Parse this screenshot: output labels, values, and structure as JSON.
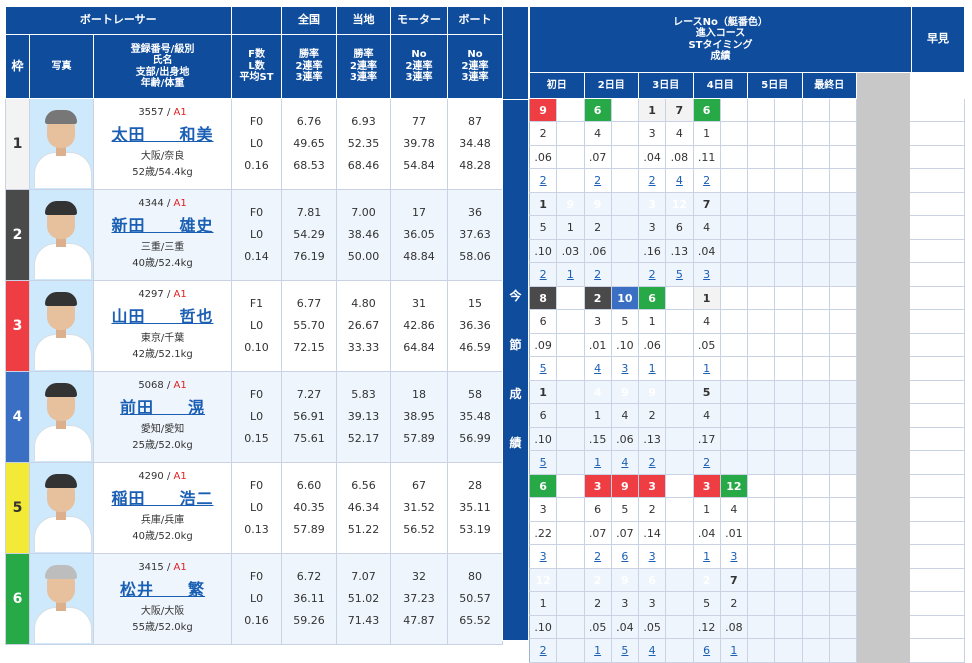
{
  "headers": {
    "boat_racer": "ボートレーサー",
    "waku": "枠",
    "photo": "写真",
    "racer_info": [
      "登録番号/級別",
      "氏名",
      "支部/出身地",
      "年齢/体重"
    ],
    "fl": [
      "F数",
      "L数",
      "平均ST"
    ],
    "zenkoku": "全国",
    "touchi": "当地",
    "motor": "モーター",
    "boat": "ボート",
    "rate3": [
      "勝率",
      "2連率",
      "3連率"
    ],
    "rateNo": [
      "No",
      "2連率",
      "3連率"
    ],
    "race_info": [
      "レースNo（艇番色）",
      "進入コース",
      "STタイミング",
      "成績"
    ],
    "days": [
      "初日",
      "2日目",
      "3日目",
      "4日目",
      "5日目",
      "最終日"
    ],
    "konsetsu": [
      "今",
      "節",
      "成",
      "績"
    ],
    "hayami": "早見"
  },
  "colors": {
    "header": "#0f4d9c",
    "waku1": "#f3f3f3",
    "waku2": "#4a4a4a",
    "waku3": "#ef3e43",
    "waku4": "#3b6fc4",
    "waku5": "#f2ea37",
    "waku6": "#27a947"
  },
  "racers": [
    {
      "waku": "1",
      "reg": "3557",
      "cls": "A1",
      "name": "太田　　和美",
      "branch": "大阪/奈良",
      "age": "52歳/54.4kg",
      "hair": "dgrey",
      "f": "F0",
      "l": "L0",
      "st": "0.16",
      "zen": [
        "6.76",
        "49.65",
        "68.53"
      ],
      "tou": [
        "6.93",
        "52.35",
        "68.46"
      ],
      "mot": [
        "77",
        "39.78",
        "54.84"
      ],
      "boa": [
        "87",
        "34.48",
        "48.28"
      ],
      "races": [
        [
          "9",
          "",
          "6",
          "",
          "1",
          "7",
          "6",
          "",
          "",
          "",
          ""
        ],
        [
          "2",
          "",
          "4",
          "",
          "3",
          "4",
          "1",
          "",
          "",
          "",
          ""
        ],
        [
          ".06",
          "",
          ".07",
          "",
          ".04",
          ".08",
          ".11",
          "",
          "",
          "",
          ""
        ],
        [
          "2",
          "",
          "2",
          "",
          "2",
          "4",
          "2",
          "",
          "",
          "",
          ""
        ]
      ],
      "colorsR": [
        "9",
        "",
        "6",
        "",
        "1",
        "7",
        "6",
        "",
        "",
        "",
        ""
      ]
    },
    {
      "waku": "2",
      "reg": "4344",
      "cls": "A1",
      "name": "新田　　雄史",
      "branch": "三重/三重",
      "age": "40歳/52.4kg",
      "hair": "",
      "f": "F0",
      "l": "L0",
      "st": "0.14",
      "zen": [
        "7.81",
        "54.29",
        "76.19"
      ],
      "tou": [
        "7.00",
        "38.46",
        "50.00"
      ],
      "mot": [
        "17",
        "36.05",
        "48.84"
      ],
      "boa": [
        "36",
        "37.63",
        "58.06"
      ],
      "races": [
        [
          "1",
          "9",
          "9",
          "",
          "3",
          "12",
          "7",
          "",
          "",
          "",
          ""
        ],
        [
          "5",
          "1",
          "2",
          "",
          "3",
          "6",
          "4",
          "",
          "",
          "",
          ""
        ],
        [
          ".10",
          ".03",
          ".06",
          "",
          ".16",
          ".13",
          ".04",
          "",
          "",
          "",
          ""
        ],
        [
          "2",
          "1",
          "2",
          "",
          "2",
          "5",
          "3",
          "",
          "",
          "",
          ""
        ]
      ],
      "colorsR": [
        "1",
        "9",
        "9",
        "",
        "3",
        "12",
        "7",
        "",
        "",
        "",
        ""
      ]
    },
    {
      "waku": "3",
      "reg": "4297",
      "cls": "A1",
      "name": "山田　　哲也",
      "branch": "東京/千葉",
      "age": "42歳/52.1kg",
      "hair": "",
      "f": "F1",
      "l": "L0",
      "st": "0.10",
      "zen": [
        "6.77",
        "55.70",
        "72.15"
      ],
      "tou": [
        "4.80",
        "26.67",
        "33.33"
      ],
      "mot": [
        "31",
        "42.86",
        "64.84"
      ],
      "boa": [
        "15",
        "36.36",
        "46.59"
      ],
      "races": [
        [
          "8",
          "",
          "2",
          "10",
          "6",
          "",
          "1",
          "",
          "",
          "",
          ""
        ],
        [
          "6",
          "",
          "3",
          "5",
          "1",
          "",
          "4",
          "",
          "",
          "",
          ""
        ],
        [
          ".09",
          "",
          ".01",
          ".10",
          ".06",
          "",
          ".05",
          "",
          "",
          "",
          ""
        ],
        [
          "5",
          "",
          "4",
          "3",
          "1",
          "",
          "1",
          "",
          "",
          "",
          ""
        ]
      ],
      "colorsR": [
        "8",
        "",
        "2",
        "10",
        "6",
        "",
        "1",
        "",
        "",
        "",
        ""
      ]
    },
    {
      "waku": "4",
      "reg": "5068",
      "cls": "A1",
      "name": "前田　　滉",
      "branch": "愛知/愛知",
      "age": "25歳/52.0kg",
      "hair": "",
      "f": "F0",
      "l": "L0",
      "st": "0.15",
      "zen": [
        "7.27",
        "56.91",
        "75.61"
      ],
      "tou": [
        "5.83",
        "39.13",
        "52.17"
      ],
      "mot": [
        "18",
        "38.95",
        "57.89"
      ],
      "boa": [
        "58",
        "35.48",
        "56.99"
      ],
      "races": [
        [
          "1",
          "",
          "4",
          "9",
          "9",
          "",
          "5",
          "",
          "",
          "",
          ""
        ],
        [
          "6",
          "",
          "1",
          "4",
          "2",
          "",
          "4",
          "",
          "",
          "",
          ""
        ],
        [
          ".10",
          "",
          ".15",
          ".06",
          ".13",
          "",
          ".17",
          "",
          "",
          "",
          ""
        ],
        [
          "5",
          "",
          "1",
          "4",
          "2",
          "",
          "2",
          "",
          "",
          "",
          ""
        ]
      ],
      "colorsR": [
        "1",
        "",
        "4",
        "9",
        "9",
        "",
        "5",
        "",
        "",
        "",
        ""
      ]
    },
    {
      "waku": "5",
      "reg": "4290",
      "cls": "A1",
      "name": "稲田　　浩二",
      "branch": "兵庫/兵庫",
      "age": "40歳/52.0kg",
      "hair": "",
      "f": "F0",
      "l": "L0",
      "st": "0.13",
      "zen": [
        "6.60",
        "40.35",
        "57.89"
      ],
      "tou": [
        "6.56",
        "46.34",
        "51.22"
      ],
      "mot": [
        "67",
        "31.52",
        "56.52"
      ],
      "boa": [
        "28",
        "35.11",
        "53.19"
      ],
      "races": [
        [
          "6",
          "",
          "3",
          "9",
          "3",
          "",
          "3",
          "12",
          "",
          "",
          ""
        ],
        [
          "3",
          "",
          "6",
          "5",
          "2",
          "",
          "1",
          "4",
          "",
          "",
          ""
        ],
        [
          ".22",
          "",
          ".07",
          ".07",
          ".14",
          "",
          ".04",
          ".01",
          "",
          "",
          ""
        ],
        [
          "3",
          "",
          "2",
          "6",
          "3",
          "",
          "1",
          "3",
          "",
          "",
          ""
        ]
      ],
      "colorsR": [
        "6",
        "",
        "3",
        "9",
        "3",
        "",
        "3",
        "12",
        "",
        "",
        ""
      ]
    },
    {
      "waku": "6",
      "reg": "3415",
      "cls": "A1",
      "name": "松井　　繁",
      "branch": "大阪/大阪",
      "age": "55歳/52.0kg",
      "hair": "grey",
      "f": "F0",
      "l": "L0",
      "st": "0.16",
      "zen": [
        "6.72",
        "36.11",
        "59.26"
      ],
      "tou": [
        "7.07",
        "51.02",
        "71.43"
      ],
      "mot": [
        "32",
        "37.23",
        "47.87"
      ],
      "boa": [
        "80",
        "50.57",
        "65.52"
      ],
      "races": [
        [
          "12",
          "",
          "2",
          "9",
          "6",
          "",
          "2",
          "7",
          "",
          "",
          ""
        ],
        [
          "1",
          "",
          "2",
          "3",
          "3",
          "",
          "5",
          "2",
          "",
          "",
          ""
        ],
        [
          ".10",
          "",
          ".05",
          ".04",
          ".05",
          "",
          ".12",
          ".08",
          "",
          "",
          ""
        ],
        [
          "2",
          "",
          "1",
          "5",
          "4",
          "",
          "6",
          "1",
          "",
          "",
          ""
        ]
      ],
      "colorsR": [
        "12",
        "",
        "2",
        "9",
        "6",
        "",
        "2",
        "7",
        "",
        "",
        ""
      ]
    }
  ]
}
